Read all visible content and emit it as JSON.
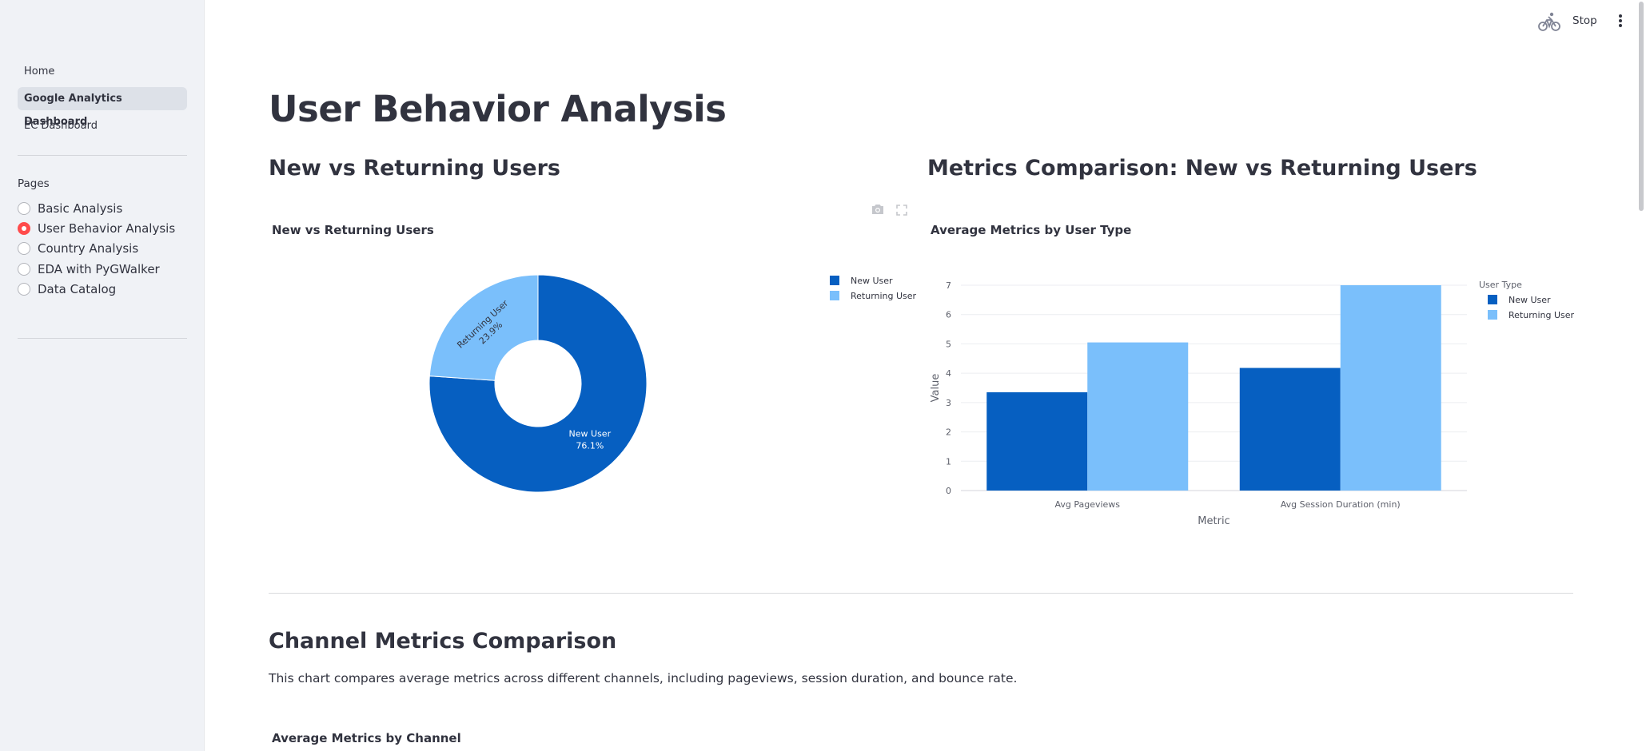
{
  "sidebar": {
    "nav": [
      {
        "label": "Home",
        "active": false
      },
      {
        "label": "Google Analytics Dashboard",
        "active": true
      },
      {
        "label": "EC Dashboard",
        "active": false
      }
    ],
    "pages_label": "Pages",
    "pages": [
      {
        "label": "Basic Analysis",
        "selected": false
      },
      {
        "label": "User Behavior Analysis",
        "selected": true
      },
      {
        "label": "Country Analysis",
        "selected": false
      },
      {
        "label": "EDA with PyGWalker",
        "selected": false
      },
      {
        "label": "Data Catalog",
        "selected": false
      }
    ]
  },
  "header": {
    "stop_label": "Stop",
    "running_icon": "cyclist-icon",
    "menu_icon": "kebab-menu-icon"
  },
  "main": {
    "title": "User Behavior Analysis",
    "section_new_vs_returning": "New vs Returning Users",
    "section_metrics": "Metrics Comparison: New vs Returning Users",
    "section_channel": "Channel Metrics Comparison",
    "channel_description": "This chart compares average metrics across different channels, including pageviews, session duration, and bounce rate.",
    "channel_chart_title": "Average Metrics by Channel",
    "toolbar_icons": [
      "camera-icon",
      "fullscreen-icon"
    ]
  },
  "colors": {
    "new_user": "#065fc1",
    "returning_user": "#7abffb",
    "accent": "#ff4b4b"
  },
  "chart_data": [
    {
      "type": "pie",
      "title": "New vs Returning Users",
      "hole": true,
      "labels": [
        "New User",
        "Returning User"
      ],
      "values": [
        76.1,
        23.9
      ],
      "slice_labels": [
        "New User\n76.1%",
        "Returning User\n23.9%"
      ],
      "legend": [
        "New User",
        "Returning User"
      ],
      "legend_position": "top-right"
    },
    {
      "type": "bar",
      "title": "Average Metrics by User Type",
      "categories": [
        "Avg Pageviews",
        "Avg Session Duration (min)"
      ],
      "series": [
        {
          "name": "New User",
          "values": [
            3.35,
            4.18
          ]
        },
        {
          "name": "Returning User",
          "values": [
            5.05,
            7.0
          ]
        }
      ],
      "xlabel": "Metric",
      "ylabel": "Value",
      "ylim": [
        0,
        7
      ],
      "yticks": [
        "0",
        "1",
        "2",
        "3",
        "4",
        "5",
        "6",
        "7"
      ],
      "legend_title": "User Type",
      "legend_position": "top-right",
      "grid": true
    }
  ]
}
